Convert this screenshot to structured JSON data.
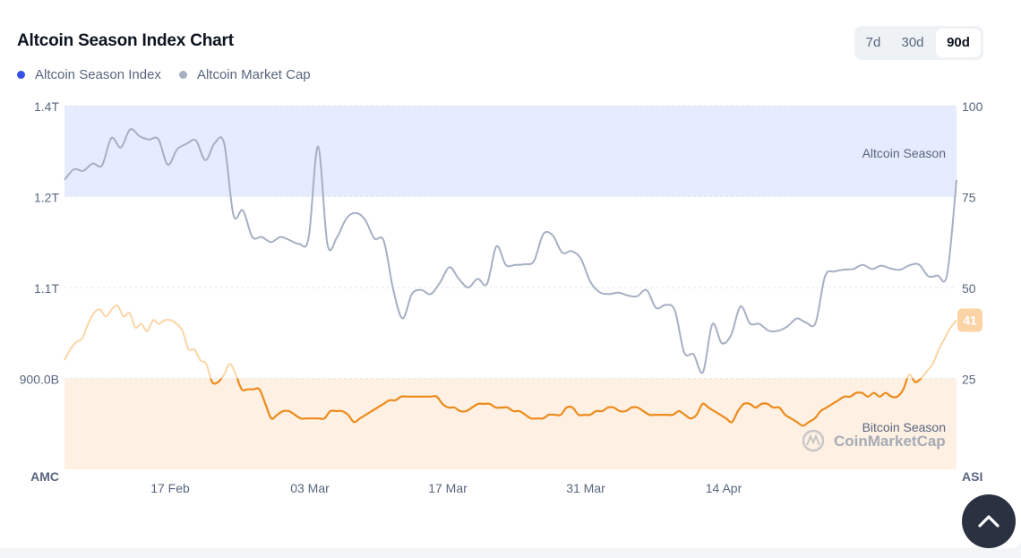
{
  "title": "Altcoin Season Index Chart",
  "legend": [
    {
      "label": "Altcoin Season Index",
      "color": "#3550e6"
    },
    {
      "label": "Altcoin Market Cap",
      "color": "#a6b0c3"
    }
  ],
  "range_buttons": [
    {
      "label": "7d",
      "active": false
    },
    {
      "label": "30d",
      "active": false
    },
    {
      "label": "90d",
      "active": true
    }
  ],
  "watermark": "CoinMarketCap",
  "scroll_top_icon": "chevron-up-icon",
  "chart_data": {
    "type": "line",
    "left_axis": {
      "label": "AMC",
      "ticks": [
        "1.4T",
        "1.2T",
        "1.1T",
        "900.0B"
      ]
    },
    "right_axis": {
      "label": "ASI",
      "ticks": [
        "100",
        "75",
        "50",
        "25"
      ],
      "ylim": [
        0,
        100
      ]
    },
    "x_ticks": [
      "17 Feb",
      "03 Mar",
      "17 Mar",
      "31 Mar",
      "14 Apr"
    ],
    "zones": [
      {
        "label": "Altcoin Season",
        "from": 75,
        "to": 100,
        "color": "#e6ebfd"
      },
      {
        "label": "Bitcoin Season",
        "from": 0,
        "to": 25,
        "color": "#fef0e3"
      }
    ],
    "current_value_label": "41",
    "series": [
      {
        "name": "Altcoin Market Cap",
        "color": "#a6b0c3",
        "axis": "right",
        "values": [
          79.6,
          82.5,
          82.1,
          84.1,
          83.6,
          91.1,
          88.5,
          93.5,
          91.6,
          90.7,
          90.8,
          83.8,
          88.0,
          89.5,
          90.4,
          85.0,
          89.7,
          89.7,
          69.9,
          71.2,
          63.9,
          63.9,
          62.5,
          63.9,
          63.0,
          62.0,
          63.7,
          88.8,
          61.9,
          63.7,
          68.9,
          70.5,
          68.7,
          63.5,
          62.8,
          49.6,
          41.5,
          48.2,
          49.3,
          48.2,
          51.4,
          55.6,
          52.4,
          50.0,
          52.4,
          51.0,
          61.3,
          56.2,
          56.2,
          56.4,
          57.3,
          64.7,
          64.3,
          59.6,
          60.0,
          57.9,
          51.6,
          48.7,
          48.2,
          48.6,
          47.8,
          47.6,
          49.3,
          44.4,
          45.2,
          43.7,
          32.1,
          31.6,
          26.7,
          39.9,
          34.7,
          37.0,
          44.8,
          40.1,
          40.0,
          38.1,
          38.1,
          39.3,
          41.5,
          40.3,
          40.3,
          53.1,
          54.4,
          54.9,
          55.1,
          56.2,
          55.1,
          56.0,
          55.2,
          54.9,
          56.1,
          56.3,
          53.1,
          53.3,
          53.6,
          79.6
        ]
      },
      {
        "name": "Altcoin Season Index",
        "color": "#ed8b1c",
        "axis": "right",
        "values": [
          30,
          33,
          35,
          36,
          40,
          43,
          44,
          42,
          44,
          45,
          42,
          43,
          39,
          40,
          38,
          41,
          40,
          41,
          41,
          40,
          38,
          33,
          33,
          30,
          29,
          24,
          24,
          26,
          29,
          26,
          22,
          22,
          22,
          22,
          18,
          14,
          15,
          16,
          16,
          15,
          14,
          14,
          14,
          14,
          14,
          16,
          16,
          16,
          15,
          13,
          14,
          15,
          16,
          17,
          18,
          19,
          19,
          20,
          20,
          20,
          20,
          20,
          20,
          20,
          18,
          17,
          17,
          16,
          16,
          17,
          18,
          18,
          18,
          17,
          17,
          17,
          16,
          16,
          15,
          14,
          14,
          14,
          15,
          15,
          15,
          17,
          17,
          15,
          15,
          15,
          16,
          16,
          17,
          17,
          16,
          16,
          17,
          17,
          16,
          15,
          15,
          15,
          15,
          15,
          16,
          15,
          14,
          15,
          18,
          17,
          16,
          15,
          14,
          13,
          16,
          18,
          18,
          17,
          18,
          18,
          17,
          17,
          15,
          14,
          13,
          12,
          13,
          14,
          16,
          17,
          18,
          19,
          20,
          20,
          21,
          21,
          20,
          21,
          20,
          21,
          20,
          20,
          22,
          26,
          24,
          25,
          27,
          29,
          33,
          36,
          39,
          41
        ]
      }
    ]
  }
}
